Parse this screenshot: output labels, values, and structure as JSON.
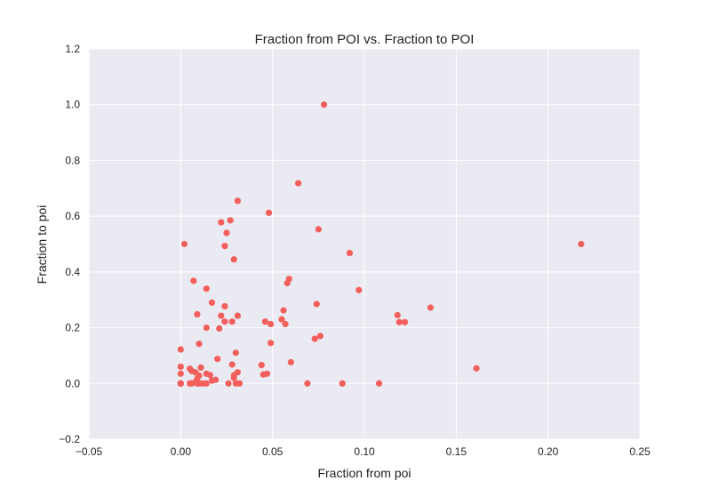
{
  "chart_data": {
    "type": "scatter",
    "title": "Fraction from POI vs. Fraction to POI",
    "xlabel": "Fraction from poi",
    "ylabel": "Fraction to poi",
    "xlim": [
      -0.05,
      0.25
    ],
    "ylim": [
      -0.2,
      1.2
    ],
    "xticks": [
      -0.05,
      0.0,
      0.05,
      0.1,
      0.15,
      0.2,
      0.25
    ],
    "yticks": [
      -0.2,
      0.0,
      0.2,
      0.4,
      0.6,
      0.8,
      1.0,
      1.2
    ],
    "xtick_labels": [
      "−0.05",
      "0.00",
      "0.05",
      "0.10",
      "0.15",
      "0.20",
      "0.25"
    ],
    "ytick_labels": [
      "−0.2",
      "0.0",
      "0.2",
      "0.4",
      "0.6",
      "0.8",
      "1.0",
      "1.2"
    ],
    "grid": true,
    "background_color": "#eaeaf2",
    "grid_color": "#ffffff",
    "marker_color": "#f25f5c",
    "points": [
      [
        0.0,
        0.0
      ],
      [
        0.0,
        0.0
      ],
      [
        0.0,
        0.0
      ],
      [
        0.0,
        0.0
      ],
      [
        0.0,
        0.035
      ],
      [
        0.0,
        0.06
      ],
      [
        0.0,
        0.122
      ],
      [
        0.002,
        0.5
      ],
      [
        0.005,
        0.0
      ],
      [
        0.006,
        0.0
      ],
      [
        0.009,
        0.0
      ],
      [
        0.01,
        0.0
      ],
      [
        0.012,
        0.0
      ],
      [
        0.014,
        0.0
      ],
      [
        0.026,
        0.0
      ],
      [
        0.03,
        0.0
      ],
      [
        0.032,
        0.0
      ],
      [
        0.069,
        0.0
      ],
      [
        0.088,
        0.0
      ],
      [
        0.108,
        0.0
      ],
      [
        0.008,
        0.005
      ],
      [
        0.009,
        0.017
      ],
      [
        0.01,
        0.028
      ],
      [
        0.017,
        0.01
      ],
      [
        0.019,
        0.013
      ],
      [
        0.029,
        0.02
      ],
      [
        0.029,
        0.03
      ],
      [
        0.031,
        0.04
      ],
      [
        0.005,
        0.053
      ],
      [
        0.006,
        0.045
      ],
      [
        0.008,
        0.04
      ],
      [
        0.011,
        0.057
      ],
      [
        0.014,
        0.035
      ],
      [
        0.016,
        0.03
      ],
      [
        0.02,
        0.088
      ],
      [
        0.028,
        0.068
      ],
      [
        0.03,
        0.11
      ],
      [
        0.044,
        0.066
      ],
      [
        0.045,
        0.032
      ],
      [
        0.047,
        0.035
      ],
      [
        0.06,
        0.076
      ],
      [
        0.01,
        0.142
      ],
      [
        0.009,
        0.248
      ],
      [
        0.007,
        0.368
      ],
      [
        0.014,
        0.2
      ],
      [
        0.014,
        0.34
      ],
      [
        0.017,
        0.29
      ],
      [
        0.021,
        0.197
      ],
      [
        0.022,
        0.243
      ],
      [
        0.024,
        0.222
      ],
      [
        0.024,
        0.277
      ],
      [
        0.028,
        0.222
      ],
      [
        0.031,
        0.243
      ],
      [
        0.046,
        0.222
      ],
      [
        0.049,
        0.145
      ],
      [
        0.049,
        0.213
      ],
      [
        0.055,
        0.23
      ],
      [
        0.056,
        0.262
      ],
      [
        0.057,
        0.213
      ],
      [
        0.058,
        0.36
      ],
      [
        0.059,
        0.375
      ],
      [
        0.073,
        0.16
      ],
      [
        0.074,
        0.285
      ],
      [
        0.076,
        0.17
      ],
      [
        0.024,
        0.493
      ],
      [
        0.025,
        0.54
      ],
      [
        0.022,
        0.578
      ],
      [
        0.027,
        0.585
      ],
      [
        0.029,
        0.445
      ],
      [
        0.031,
        0.655
      ],
      [
        0.048,
        0.612
      ],
      [
        0.064,
        0.718
      ],
      [
        0.075,
        0.553
      ],
      [
        0.078,
        1.0
      ],
      [
        0.092,
        0.468
      ],
      [
        0.097,
        0.335
      ],
      [
        0.118,
        0.245
      ],
      [
        0.119,
        0.22
      ],
      [
        0.122,
        0.22
      ],
      [
        0.136,
        0.272
      ],
      [
        0.161,
        0.054
      ],
      [
        0.218,
        0.5
      ]
    ]
  }
}
